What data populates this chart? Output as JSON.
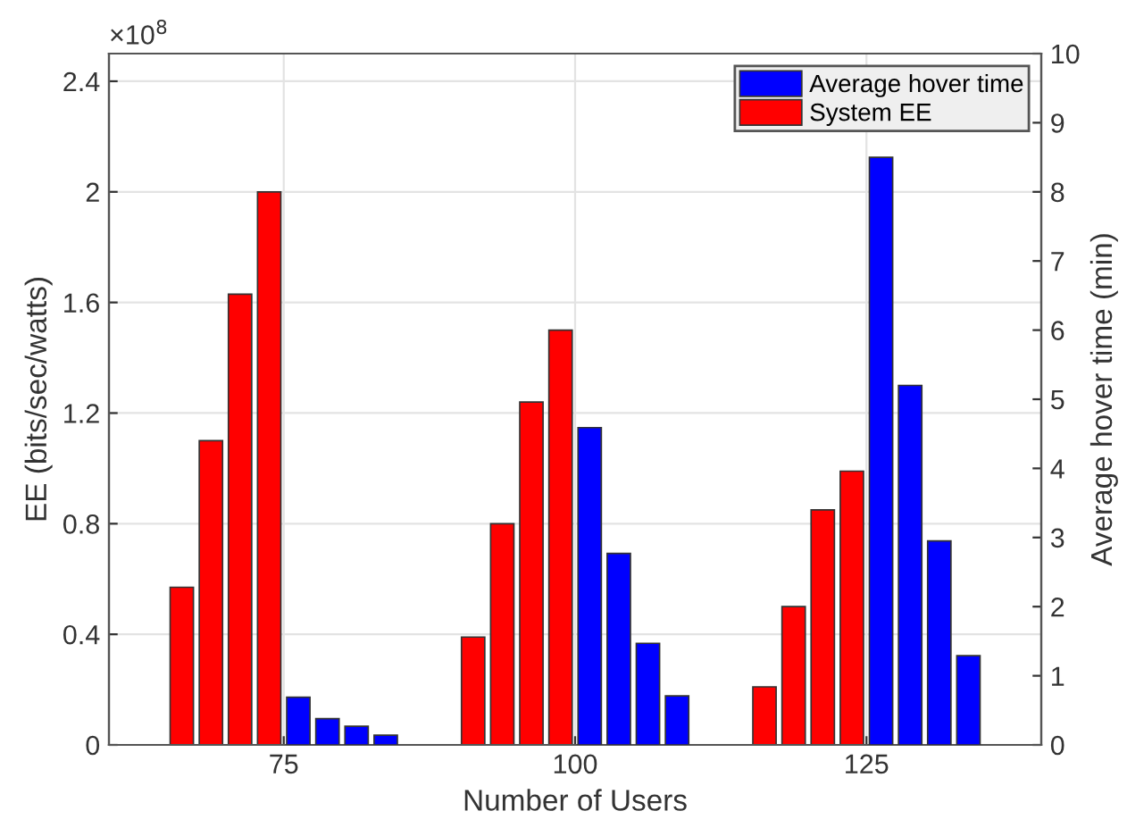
{
  "chart_data": {
    "type": "bar",
    "xlabel": "Number of Users",
    "ylabel": "EE (bits/sec/watts)",
    "y2label": "Average hover time (min)",
    "categories": [
      "75",
      "100",
      "125"
    ],
    "series": [
      {
        "name": "System EE",
        "color": "#ff0000",
        "values": [
          0.57,
          0.39,
          0.21
        ]
      },
      {
        "color": "#ff0000",
        "values": [
          1.1,
          0.8,
          0.5
        ]
      },
      {
        "color": "#ff0000",
        "values": [
          1.63,
          1.24,
          0.85
        ]
      },
      {
        "color": "#ff0000",
        "values": [
          2.0,
          1.5,
          0.99
        ]
      },
      {
        "name": "Average hover time",
        "color": "#0000ff",
        "axis": "y2",
        "values": [
          0.69,
          4.59,
          8.5
        ]
      },
      {
        "color": "#0000ff",
        "axis": "y2",
        "values": [
          0.38,
          2.77,
          5.2
        ]
      },
      {
        "color": "#0000ff",
        "axis": "y2",
        "values": [
          0.27,
          1.47,
          2.95
        ]
      },
      {
        "color": "#0000ff",
        "axis": "y2",
        "values": [
          0.14,
          0.71,
          1.29
        ]
      }
    ],
    "ylim": [
      0,
      2.5
    ],
    "yticks": [
      0,
      0.4,
      0.8,
      1.2,
      1.6,
      2,
      2.4
    ],
    "y2lim": [
      0,
      10
    ],
    "y2ticks": [
      0,
      1,
      2,
      3,
      4,
      5,
      6,
      7,
      8,
      9,
      10
    ],
    "annotations": [
      "×10$^{8}$"
    ],
    "grid": true,
    "legend": "top right"
  }
}
